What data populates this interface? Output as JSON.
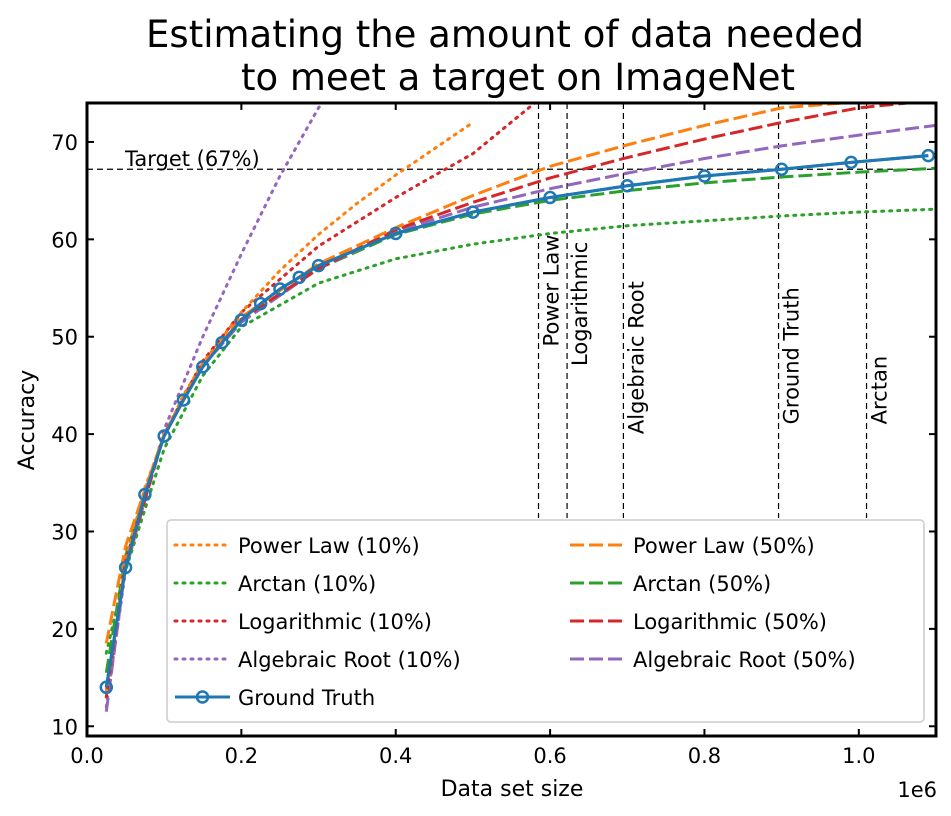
{
  "chart_data": {
    "type": "line",
    "title_lines": [
      "Estimating the amount of data needed",
      "to meet a target on ImageNet"
    ],
    "xlabel": "Data set size",
    "ylabel": "Accuracy",
    "x_scale_label": "1e6",
    "xlim": [
      0,
      1.1
    ],
    "ylim": [
      9,
      74
    ],
    "xticks": [
      0.0,
      0.2,
      0.4,
      0.6,
      0.8,
      1.0
    ],
    "xtick_labels": [
      "0.0",
      "0.2",
      "0.4",
      "0.6",
      "0.8",
      "1.0"
    ],
    "yticks": [
      10,
      20,
      30,
      40,
      50,
      60,
      70
    ],
    "ytick_labels": [
      "10",
      "20",
      "30",
      "40",
      "50",
      "60",
      "70"
    ],
    "target": {
      "value": 67.2,
      "label": "Target (67%)"
    },
    "vlines": [
      {
        "x": 0.585,
        "label": "Power Law",
        "label_y": 49
      },
      {
        "x": 0.622,
        "label": "Logarithmic",
        "label_y": 47
      },
      {
        "x": 0.695,
        "label": "Algebraic Root",
        "label_y": 40
      },
      {
        "x": 0.896,
        "label": "Ground Truth",
        "label_y": 41
      },
      {
        "x": 1.01,
        "label": "Arctan",
        "label_y": 41
      }
    ],
    "series": [
      {
        "name": "Power Law (10%)",
        "color": "#ff7f0e",
        "style": "dotted",
        "x": [
          0.025,
          0.05,
          0.075,
          0.1,
          0.125,
          0.15,
          0.2,
          0.25,
          0.3,
          0.35,
          0.4,
          0.45,
          0.5
        ],
        "y": [
          13.5,
          27.0,
          34.5,
          39.8,
          44.0,
          47.3,
          52.5,
          56.8,
          60.5,
          63.7,
          66.6,
          69.3,
          72.0
        ]
      },
      {
        "name": "Power Law (50%)",
        "color": "#ff7f0e",
        "style": "dashed",
        "x": [
          0.025,
          0.05,
          0.1,
          0.15,
          0.2,
          0.3,
          0.4,
          0.5,
          0.6,
          0.7,
          0.8,
          0.9,
          0.98
        ],
        "y": [
          18.5,
          28.5,
          40.0,
          47.0,
          52.0,
          57.5,
          61.2,
          64.5,
          67.5,
          69.7,
          71.7,
          73.5,
          74.0
        ]
      },
      {
        "name": "Arctan (10%)",
        "color": "#2ca02c",
        "style": "dotted",
        "x": [
          0.025,
          0.05,
          0.1,
          0.15,
          0.2,
          0.3,
          0.4,
          0.5,
          0.6,
          0.7,
          0.8,
          0.9,
          1.0,
          1.1
        ],
        "y": [
          17.5,
          26.0,
          38.5,
          46.0,
          51.0,
          55.5,
          58.0,
          59.5,
          60.6,
          61.4,
          61.9,
          62.4,
          62.8,
          63.1
        ]
      },
      {
        "name": "Arctan (50%)",
        "color": "#2ca02c",
        "style": "dashed",
        "x": [
          0.025,
          0.05,
          0.1,
          0.15,
          0.2,
          0.3,
          0.4,
          0.5,
          0.6,
          0.7,
          0.8,
          0.9,
          1.0,
          1.1
        ],
        "y": [
          15.5,
          27.5,
          40.0,
          47.0,
          51.5,
          57.0,
          60.5,
          62.6,
          64.0,
          65.0,
          65.8,
          66.4,
          66.9,
          67.3
        ]
      },
      {
        "name": "Logarithmic (10%)",
        "color": "#d62728",
        "style": "dotted",
        "x": [
          0.025,
          0.05,
          0.1,
          0.15,
          0.2,
          0.3,
          0.4,
          0.5,
          0.58
        ],
        "y": [
          13.0,
          27.0,
          40.0,
          47.5,
          52.5,
          59.3,
          64.3,
          68.8,
          74.0
        ]
      },
      {
        "name": "Logarithmic (50%)",
        "color": "#d62728",
        "style": "dashed",
        "x": [
          0.025,
          0.05,
          0.1,
          0.15,
          0.2,
          0.3,
          0.4,
          0.5,
          0.6,
          0.7,
          0.8,
          0.9,
          1.0,
          1.1
        ],
        "y": [
          13.5,
          26.5,
          40.0,
          47.0,
          51.8,
          57.0,
          61.0,
          63.8,
          66.3,
          68.4,
          70.3,
          72.0,
          73.5,
          74.3
        ]
      },
      {
        "name": "Algebraic Root (10%)",
        "color": "#9467bd",
        "style": "dotted",
        "x": [
          0.025,
          0.05,
          0.1,
          0.15,
          0.2,
          0.25,
          0.3,
          0.31
        ],
        "y": [
          12.0,
          26.0,
          40.5,
          50.0,
          58.5,
          66.5,
          73.5,
          74.5
        ]
      },
      {
        "name": "Algebraic Root (50%)",
        "color": "#9467bd",
        "style": "dashed",
        "x": [
          0.025,
          0.05,
          0.1,
          0.15,
          0.2,
          0.3,
          0.4,
          0.5,
          0.6,
          0.7,
          0.8,
          0.9,
          1.0,
          1.1
        ],
        "y": [
          11.5,
          26.5,
          40.0,
          47.0,
          51.5,
          57.0,
          60.8,
          63.3,
          65.2,
          66.8,
          68.3,
          69.6,
          70.7,
          71.7
        ]
      },
      {
        "name": "Ground Truth",
        "color": "#1f77b4",
        "style": "solid",
        "markers": true,
        "x": [
          0.025,
          0.05,
          0.075,
          0.1,
          0.125,
          0.15,
          0.175,
          0.2,
          0.225,
          0.25,
          0.275,
          0.3,
          0.4,
          0.5,
          0.6,
          0.7,
          0.8,
          0.9,
          0.99,
          1.09
        ],
        "y": [
          14.0,
          26.3,
          33.8,
          39.8,
          43.5,
          46.9,
          49.4,
          51.7,
          53.4,
          54.9,
          56.1,
          57.3,
          60.6,
          62.8,
          64.3,
          65.5,
          66.5,
          67.2,
          67.9,
          68.6
        ]
      }
    ],
    "legend": {
      "placement": "lower-right",
      "columns": [
        [
          "Power Law (10%)",
          "Arctan (10%)",
          "Logarithmic (10%)",
          "Algebraic Root (10%)",
          "Ground Truth"
        ],
        [
          "Power Law (50%)",
          "Arctan (50%)",
          "Logarithmic (50%)",
          "Algebraic Root (50%)"
        ]
      ]
    }
  }
}
